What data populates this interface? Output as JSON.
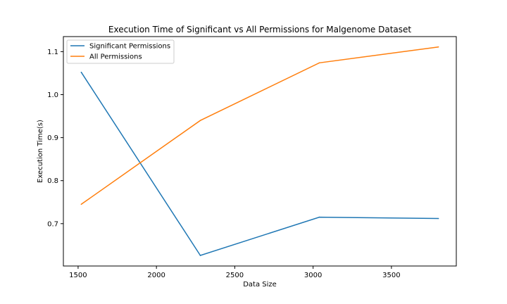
{
  "chart_data": {
    "type": "line",
    "title": "Execution Time of Significant vs All Permissions for Malgenome Dataset",
    "xlabel": "Data Size",
    "ylabel": "Execution Time(s)",
    "x": [
      1520,
      2280,
      3040,
      3800
    ],
    "xlim": [
      1406,
      3914
    ],
    "ylim": [
      0.6015,
      1.135
    ],
    "xticks": [
      1500,
      2000,
      2500,
      3000,
      3500
    ],
    "xtick_labels": [
      "1500",
      "2000",
      "2500",
      "3000",
      "3500"
    ],
    "yticks": [
      0.7,
      0.8,
      0.9,
      1.0,
      1.1
    ],
    "ytick_labels": [
      "0.7",
      "0.8",
      "0.9",
      "1.0",
      "1.1"
    ],
    "grid": false,
    "legend_position": "top-left",
    "series": [
      {
        "name": "Significant Permissions",
        "values": [
          1.052,
          0.626,
          0.715,
          0.712
        ],
        "color": "#1f77b4"
      },
      {
        "name": "All Permissions",
        "values": [
          0.745,
          0.94,
          1.074,
          1.111
        ],
        "color": "#ff7f0e"
      }
    ]
  }
}
